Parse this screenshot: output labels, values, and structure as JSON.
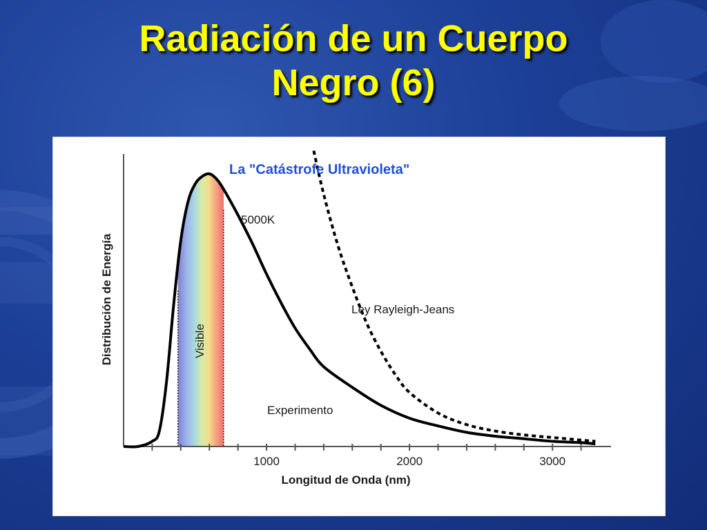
{
  "slide": {
    "title_line1": "Radiación de un Cuerpo",
    "title_line2": "Negro (6)",
    "background_color": "#1c3f97",
    "title_color": "#ffff00"
  },
  "chart_data": {
    "type": "line",
    "title": "La \"Catástrofe Ultravioleta\"",
    "xlabel": "Longitud de Onda (nm)",
    "ylabel": "Distribución de Energía",
    "xlim": [
      0,
      3400
    ],
    "ylim": [
      0,
      1.1
    ],
    "y_tick_labels_shown": false,
    "x_ticks": [
      1000,
      2000,
      3000
    ],
    "x_tick_labels": [
      "1000",
      "2000",
      "3000"
    ],
    "grid": false,
    "series": [
      {
        "name": "Experimento",
        "style": "solid",
        "color": "#000000",
        "x": [
          0,
          100,
          200,
          250,
          300,
          350,
          400,
          450,
          500,
          550,
          600,
          650,
          700,
          800,
          900,
          1000,
          1100,
          1200,
          1300,
          1400,
          1600,
          1800,
          2000,
          2200,
          2400,
          2600,
          2800,
          3000,
          3200,
          3300
        ],
        "y": [
          0.0,
          0.0,
          0.02,
          0.06,
          0.25,
          0.55,
          0.8,
          0.95,
          1.02,
          1.05,
          1.06,
          1.04,
          1.0,
          0.9,
          0.79,
          0.67,
          0.56,
          0.46,
          0.38,
          0.31,
          0.23,
          0.16,
          0.11,
          0.08,
          0.055,
          0.04,
          0.03,
          0.02,
          0.015,
          0.01
        ]
      },
      {
        "name": "Ley Rayleigh-Jeans",
        "style": "dashed",
        "color": "#000000",
        "x": [
          1330,
          1400,
          1500,
          1600,
          1700,
          1800,
          1900,
          2000,
          2200,
          2400,
          2600,
          2800,
          3000,
          3200,
          3300
        ],
        "y": [
          1.15,
          0.98,
          0.78,
          0.62,
          0.48,
          0.37,
          0.28,
          0.21,
          0.13,
          0.085,
          0.06,
          0.045,
          0.035,
          0.025,
          0.02
        ]
      }
    ],
    "annotations": [
      {
        "text": "5000K",
        "x": 780,
        "y": 1.0
      },
      {
        "text": "Ley Rayleigh-Jeans",
        "x": 1600,
        "y": 0.6
      },
      {
        "text": "Experimento",
        "x": 1050,
        "y": 0.1
      },
      {
        "text": "Visible",
        "x": 540,
        "y": 0.4
      }
    ],
    "visible_band": {
      "start": 380,
      "end": 700,
      "label": "Visible"
    }
  }
}
